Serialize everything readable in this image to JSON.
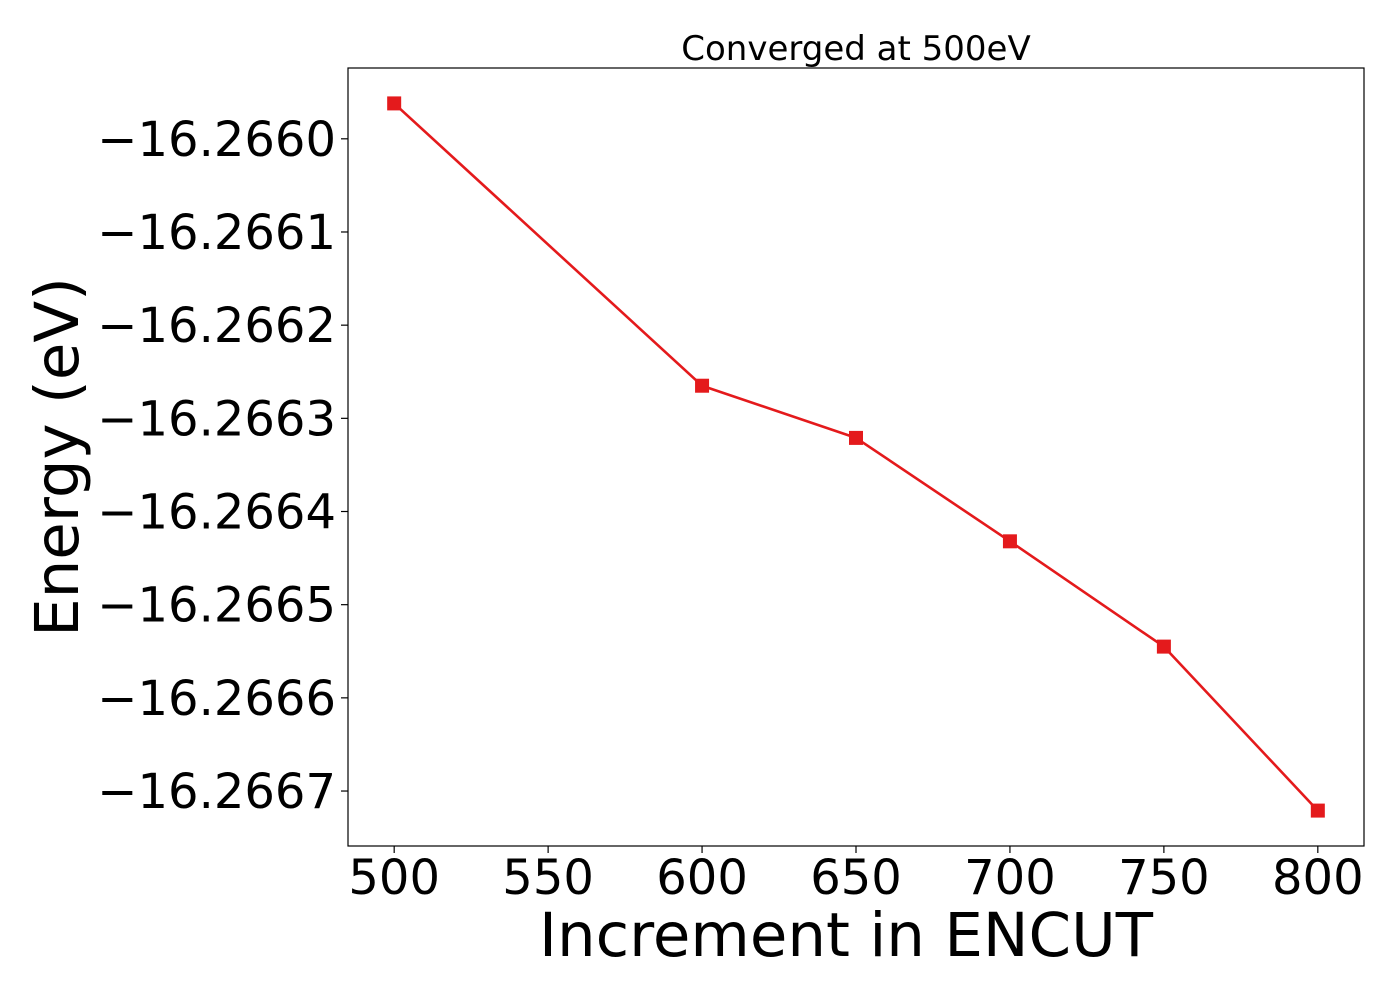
{
  "chart_data": {
    "type": "line",
    "title": "Converged at 500eV",
    "xlabel": "Increment in ENCUT",
    "ylabel": "Energy (eV)",
    "x": [
      500,
      600,
      650,
      700,
      750,
      800
    ],
    "series": [
      {
        "values": [
          -16.265962,
          -16.266265,
          -16.266321,
          -16.266432,
          -16.266545,
          -16.266721
        ],
        "color": "#e41a1c",
        "marker": "square"
      }
    ],
    "xlim": [
      485,
      815
    ],
    "ylim": [
      -16.266759,
      -16.265924
    ],
    "xticks": [
      500,
      550,
      600,
      650,
      700,
      750,
      800
    ],
    "xtick_labels": [
      "500",
      "550",
      "600",
      "650",
      "700",
      "750",
      "800"
    ],
    "yticks": [
      -16.266,
      -16.2661,
      -16.2662,
      -16.2663,
      -16.2664,
      -16.2665,
      -16.2666,
      -16.2667
    ],
    "ytick_labels": [
      "−16.2660",
      "−16.2661",
      "−16.2662",
      "−16.2663",
      "−16.2664",
      "−16.2665",
      "−16.2666",
      "−16.2667"
    ],
    "grid": false,
    "legend": "none"
  }
}
